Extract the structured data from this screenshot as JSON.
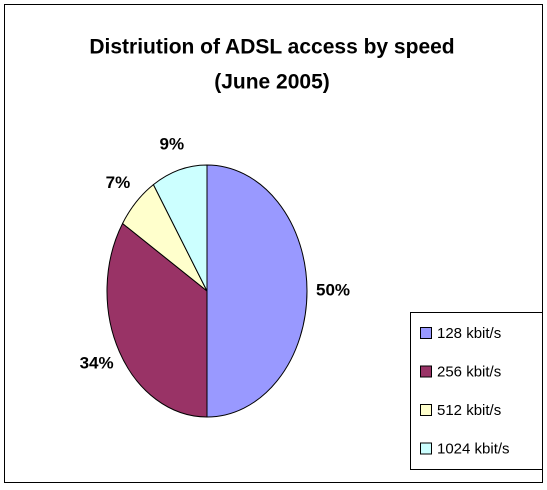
{
  "chart_data": {
    "type": "pie",
    "title": "Distriution of ADSL access by speed",
    "subtitle": "(June 2005)",
    "categories": [
      "128 kbit/s",
      "256 kbit/s",
      "512 kbit/s",
      "1024 kbit/s"
    ],
    "values": [
      50,
      34,
      7,
      9
    ],
    "value_labels": [
      "50%",
      "34%",
      "7%",
      "9%"
    ],
    "colors": [
      "#9999ff",
      "#993366",
      "#ffffcc",
      "#ccffff"
    ],
    "legend": "right"
  }
}
